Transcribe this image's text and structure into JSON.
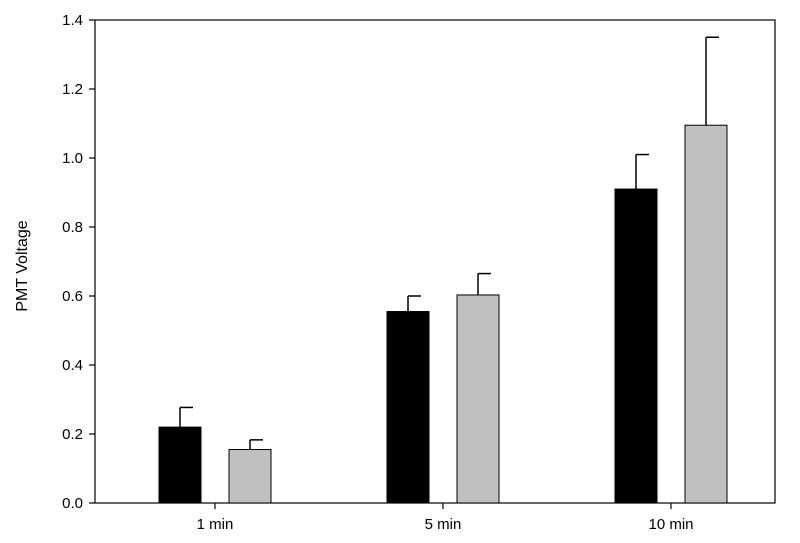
{
  "chart_data": {
    "type": "bar",
    "title": "",
    "xlabel": "",
    "ylabel": "PMT Voltage",
    "categories": [
      "1 min",
      "5 min",
      "10 min"
    ],
    "series": [
      {
        "color": "#000000",
        "values": [
          0.22,
          0.555,
          0.91
        ],
        "errors": [
          0.057,
          0.045,
          0.1
        ]
      },
      {
        "color": "#c0c0c0",
        "values": [
          0.155,
          0.603,
          1.095
        ],
        "errors": [
          0.028,
          0.062,
          0.255
        ]
      }
    ],
    "ylim": [
      0,
      1.4
    ],
    "yticks": [
      "0.0",
      "0.2",
      "0.4",
      "0.6",
      "0.8",
      "1.0",
      "1.2",
      "1.4"
    ],
    "grid": false,
    "legend": "none"
  }
}
